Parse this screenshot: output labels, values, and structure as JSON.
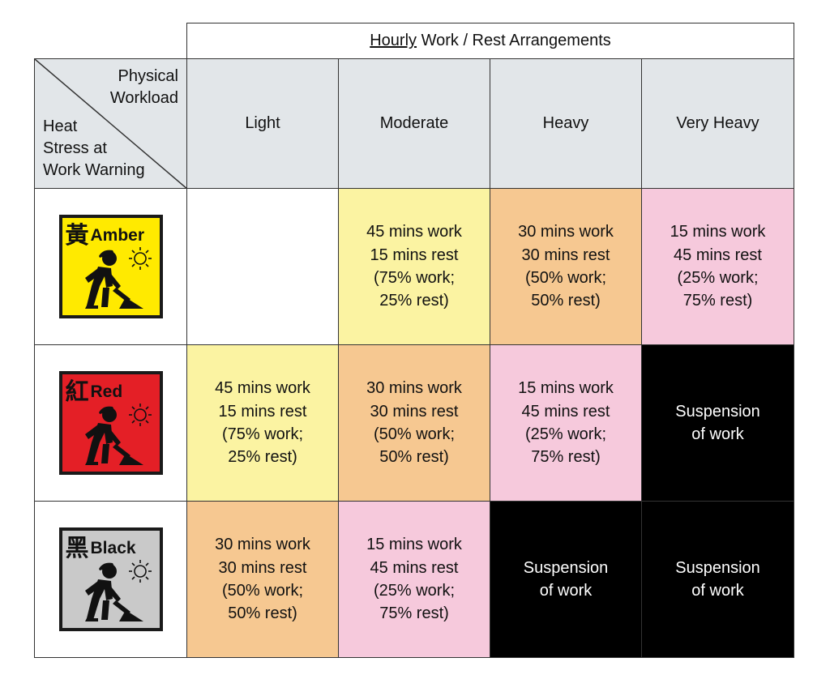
{
  "table": {
    "title_underlined": "Hourly",
    "title_rest": " Work / Rest Arrangements",
    "corner": {
      "top_label": "Physical\nWorkload",
      "bottom_label": "Heat\nStress at\nWork Warning"
    },
    "columns": [
      "Light",
      "Moderate",
      "Heavy",
      "Very Heavy"
    ],
    "rows": [
      {
        "warning": {
          "cn": "黃",
          "en": "Amber",
          "color": "#ffea00",
          "icon": "worker-shovel-sun-icon"
        },
        "cells": [
          {
            "text": "",
            "color": "#ffffff"
          },
          {
            "text": "45 mins work\n15 mins rest\n(75% work;\n25% rest)",
            "color": "#fbf3a2"
          },
          {
            "text": "30 mins work\n30 mins rest\n(50% work;\n50% rest)",
            "color": "#f6c891"
          },
          {
            "text": "15 mins work\n45 mins rest\n(25% work;\n75% rest)",
            "color": "#f6c9dc"
          }
        ]
      },
      {
        "warning": {
          "cn": "紅",
          "en": "Red",
          "color": "#e41f26",
          "icon": "worker-shovel-sun-icon"
        },
        "cells": [
          {
            "text": "45 mins work\n15 mins rest\n(75% work;\n25% rest)",
            "color": "#fbf3a2"
          },
          {
            "text": "30 mins work\n30 mins rest\n(50% work;\n50% rest)",
            "color": "#f6c891"
          },
          {
            "text": "15 mins work\n45 mins rest\n(25% work;\n75% rest)",
            "color": "#f6c9dc"
          },
          {
            "text": "Suspension\nof work",
            "color": "#000000"
          }
        ]
      },
      {
        "warning": {
          "cn": "黑",
          "en": "Black",
          "color": "#c9c9c9",
          "icon": "worker-shovel-sun-icon"
        },
        "cells": [
          {
            "text": "30 mins work\n30 mins rest\n(50% work;\n50% rest)",
            "color": "#f6c891"
          },
          {
            "text": "15 mins work\n45 mins rest\n(25% work;\n75% rest)",
            "color": "#f6c9dc"
          },
          {
            "text": "Suspension\nof work",
            "color": "#000000"
          },
          {
            "text": "Suspension\nof work",
            "color": "#000000"
          }
        ]
      }
    ]
  }
}
